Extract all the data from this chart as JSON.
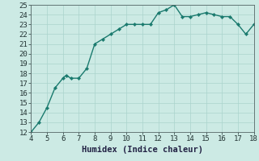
{
  "x": [
    4,
    4.5,
    5,
    5.5,
    6,
    6.2,
    6.5,
    7,
    7.5,
    8,
    8.5,
    9,
    9.5,
    10,
    10.5,
    11,
    11.5,
    12,
    12.5,
    13,
    13.5,
    14,
    14.5,
    15,
    15.5,
    16,
    16.5,
    17,
    17.5,
    18
  ],
  "y": [
    12,
    13,
    14.5,
    16.5,
    17.5,
    17.8,
    17.5,
    17.5,
    18.5,
    21,
    21.5,
    22,
    22.5,
    23,
    23,
    23,
    23,
    24.2,
    24.5,
    25,
    23.8,
    23.8,
    24,
    24.2,
    24,
    23.8,
    23.8,
    23,
    22,
    23
  ],
  "line_color": "#1a7a6e",
  "marker_color": "#1a7a6e",
  "bg_color": "#cceae4",
  "grid_color_major": "#aad4cc",
  "grid_color_minor": "#bbddd7",
  "xlabel": "Humidex (Indice chaleur)",
  "xlim": [
    4,
    18
  ],
  "ylim": [
    12,
    25
  ],
  "xticks": [
    4,
    5,
    6,
    7,
    8,
    9,
    10,
    11,
    12,
    13,
    14,
    15,
    16,
    17,
    18
  ],
  "yticks": [
    12,
    13,
    14,
    15,
    16,
    17,
    18,
    19,
    20,
    21,
    22,
    23,
    24,
    25
  ],
  "tick_fontsize": 6.5,
  "xlabel_fontsize": 7.5,
  "linewidth": 1.0,
  "markersize": 2.2
}
